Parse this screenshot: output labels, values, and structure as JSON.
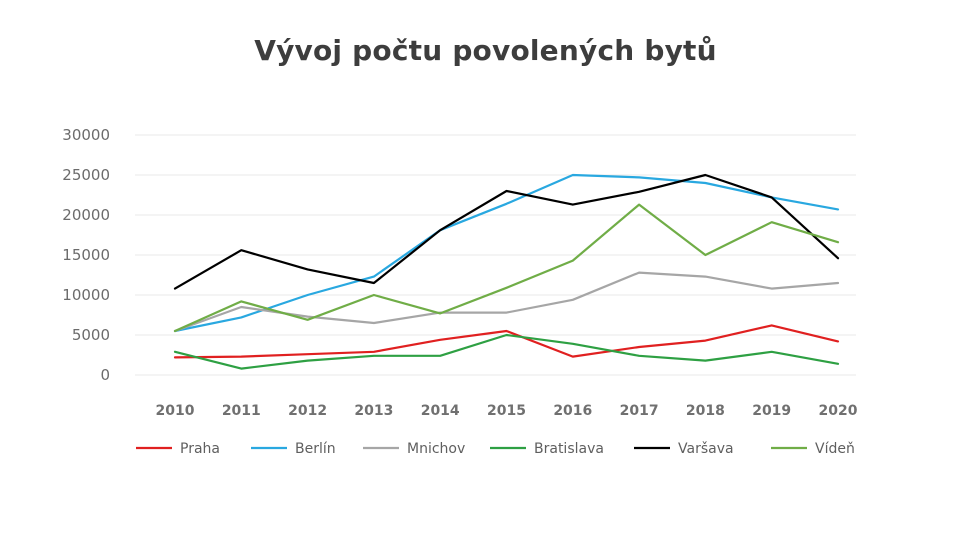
{
  "chart_data": {
    "type": "line",
    "title": "Vývoj počtu povolených bytů",
    "xlabel": "",
    "ylabel": "",
    "x": [
      "2010",
      "2011",
      "2012",
      "2013",
      "2014",
      "2015",
      "2016",
      "2017",
      "2018",
      "2019",
      "2020"
    ],
    "yticks": [
      "0",
      "5000",
      "10000",
      "15000",
      "20000",
      "25000",
      "30000"
    ],
    "ylim": [
      0,
      30000
    ],
    "grid": true,
    "legend_position": "bottom",
    "series": [
      {
        "name": "Praha",
        "color": "#e02020",
        "values": [
          2200,
          2300,
          2600,
          2900,
          4400,
          5500,
          2300,
          3500,
          4300,
          6200,
          4200
        ]
      },
      {
        "name": "Berlín",
        "color": "#29a8e0",
        "values": [
          5500,
          7200,
          10000,
          12300,
          18100,
          21400,
          25000,
          24700,
          24000,
          22200,
          20700
        ]
      },
      {
        "name": "Mnichov",
        "color": "#a6a6a6",
        "values": [
          5500,
          8500,
          7300,
          6500,
          7800,
          7800,
          9400,
          12800,
          12300,
          10800,
          11500
        ]
      },
      {
        "name": "Bratislava",
        "color": "#2ea043",
        "values": [
          2900,
          800,
          1800,
          2400,
          2400,
          5000,
          3900,
          2400,
          1800,
          2900,
          1400
        ]
      },
      {
        "name": "Varšava",
        "color": "#000000",
        "values": [
          10800,
          15600,
          13200,
          11500,
          18100,
          23000,
          21300,
          22900,
          25000,
          22200,
          14600
        ]
      },
      {
        "name": "Vídeň",
        "color": "#70ad47",
        "values": [
          5500,
          9200,
          6900,
          10000,
          7700,
          10900,
          14300,
          21300,
          15000,
          19100,
          16600
        ]
      }
    ]
  }
}
